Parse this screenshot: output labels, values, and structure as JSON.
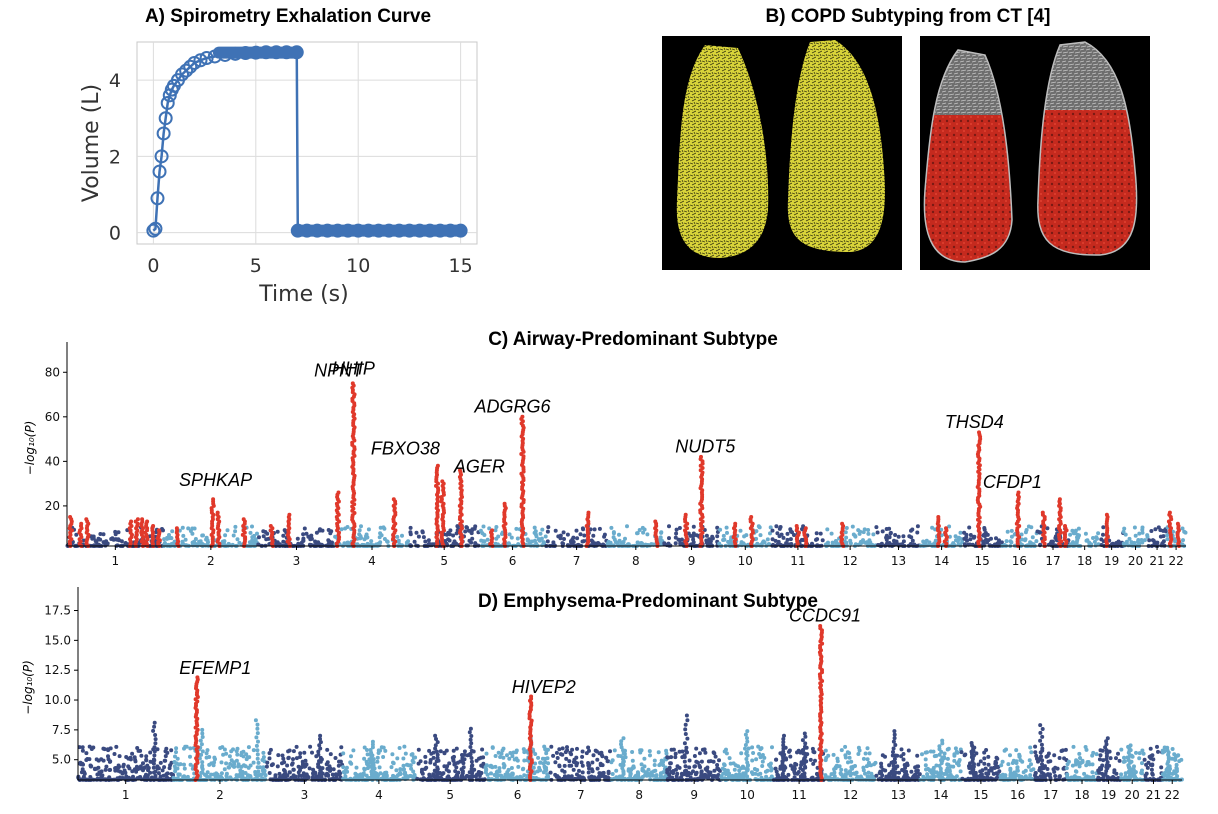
{
  "chart_data": [
    {
      "type": "line",
      "title": "A) Spirometry Exhalation Curve",
      "xlabel": "Time (s)",
      "ylabel": "Volume (L)",
      "xlim": [
        -0.8,
        15.8
      ],
      "ylim": [
        -0.3,
        5.0
      ],
      "xticks": [
        "0",
        "5",
        "10",
        "15"
      ],
      "yticks": [
        "0",
        "2",
        "4"
      ],
      "grid": true,
      "series": [
        {
          "marker": "open-circle",
          "x": [
            0,
            0.1,
            0.2,
            0.3,
            0.4,
            0.5,
            0.6,
            0.7,
            0.8,
            0.9,
            1.0,
            1.2,
            1.4,
            1.6,
            1.8,
            2.0,
            2.3,
            2.6,
            3.0,
            3.5,
            4.0,
            4.5,
            5.0,
            5.5,
            6.0,
            6.5,
            7.0
          ],
          "y": [
            0.05,
            0.1,
            0.9,
            1.6,
            2.0,
            2.6,
            3.0,
            3.4,
            3.6,
            3.75,
            3.85,
            4.0,
            4.15,
            4.25,
            4.35,
            4.45,
            4.52,
            4.58,
            4.62,
            4.66,
            4.69,
            4.71,
            4.72,
            4.73,
            4.73,
            4.73,
            4.73
          ]
        },
        {
          "marker": "filled-circle",
          "x": [
            7.05,
            7.5,
            8,
            8.5,
            9,
            9.5,
            10,
            10.5,
            11,
            11.5,
            12,
            12.5,
            13,
            13.5,
            14,
            14.5,
            15
          ],
          "y": [
            0.05,
            0.05,
            0.05,
            0.05,
            0.05,
            0.05,
            0.05,
            0.05,
            0.05,
            0.05,
            0.05,
            0.05,
            0.05,
            0.05,
            0.05,
            0.05,
            0.05
          ]
        }
      ],
      "colors": {
        "line": "#3f72b5"
      }
    },
    {
      "type": "image-panel",
      "title": "B) COPD Subtyping from CT [4]",
      "panels": [
        {
          "description_color": "#e8e233"
        },
        {
          "description_color": "#d42a1e"
        }
      ]
    },
    {
      "type": "scatter",
      "title": "C) Airway-Predominant Subtype",
      "ylabel": "−log₁₀(P)",
      "ylim": [
        2,
        90
      ],
      "yticks": [
        "20",
        "40",
        "60",
        "80"
      ],
      "chromosomes": [
        "1",
        "2",
        "3",
        "4",
        "5",
        "6",
        "7",
        "8",
        "9",
        "10",
        "11",
        "12",
        "13",
        "14",
        "15",
        "16",
        "17",
        "18",
        "19",
        "20",
        "21",
        "22"
      ],
      "colors": {
        "dark": "#3a4a80",
        "light": "#6aaccd",
        "hit": "#e0392b"
      },
      "peaks": [
        {
          "chrom": 1,
          "pos": 0.04,
          "y": 15
        },
        {
          "chrom": 1,
          "pos": 0.14,
          "y": 12
        },
        {
          "chrom": 1,
          "pos": 0.21,
          "y": 14
        },
        {
          "chrom": 1,
          "pos": 0.66,
          "y": 13
        },
        {
          "chrom": 1,
          "pos": 0.72,
          "y": 14
        },
        {
          "chrom": 1,
          "pos": 0.78,
          "y": 14
        },
        {
          "chrom": 1,
          "pos": 0.82,
          "y": 13
        },
        {
          "chrom": 1,
          "pos": 0.88,
          "y": 11
        },
        {
          "chrom": 1,
          "pos": 0.95,
          "y": 9
        },
        {
          "chrom": 2,
          "pos": 0.15,
          "y": 10
        },
        {
          "chrom": 2,
          "pos": 0.52,
          "y": 23
        },
        {
          "chrom": 2,
          "pos": 0.58,
          "y": 17
        },
        {
          "chrom": 2,
          "pos": 0.85,
          "y": 14
        },
        {
          "chrom": 3,
          "pos": 0.18,
          "y": 11
        },
        {
          "chrom": 3,
          "pos": 0.4,
          "y": 16
        },
        {
          "chrom": 4,
          "pos": 0.04,
          "y": 26
        },
        {
          "chrom": 4,
          "pos": 0.25,
          "y": 75
        },
        {
          "chrom": 4,
          "pos": 0.8,
          "y": 23
        },
        {
          "chrom": 5,
          "pos": 0.4,
          "y": 38
        },
        {
          "chrom": 5,
          "pos": 0.48,
          "y": 31
        },
        {
          "chrom": 5,
          "pos": 0.74,
          "y": 36
        },
        {
          "chrom": 6,
          "pos": 0.18,
          "y": 9
        },
        {
          "chrom": 6,
          "pos": 0.38,
          "y": 21
        },
        {
          "chrom": 6,
          "pos": 0.65,
          "y": 60
        },
        {
          "chrom": 7,
          "pos": 0.68,
          "y": 17
        },
        {
          "chrom": 8,
          "pos": 0.86,
          "y": 13
        },
        {
          "chrom": 9,
          "pos": 0.4,
          "y": 16
        },
        {
          "chrom": 9,
          "pos": 0.68,
          "y": 42
        },
        {
          "chrom": 10,
          "pos": 0.3,
          "y": 12
        },
        {
          "chrom": 10,
          "pos": 0.62,
          "y": 15
        },
        {
          "chrom": 11,
          "pos": 0.5,
          "y": 11
        },
        {
          "chrom": 11,
          "pos": 0.64,
          "y": 10
        },
        {
          "chrom": 12,
          "pos": 0.35,
          "y": 12
        },
        {
          "chrom": 14,
          "pos": 0.44,
          "y": 15
        },
        {
          "chrom": 14,
          "pos": 0.6,
          "y": 10
        },
        {
          "chrom": 15,
          "pos": 0.42,
          "y": 53
        },
        {
          "chrom": 16,
          "pos": 0.46,
          "y": 26
        },
        {
          "chrom": 17,
          "pos": 0.22,
          "y": 17
        },
        {
          "chrom": 17,
          "pos": 0.72,
          "y": 23
        },
        {
          "chrom": 17,
          "pos": 0.9,
          "y": 11
        },
        {
          "chrom": 19,
          "pos": 0.3,
          "y": 16
        },
        {
          "chrom": 22,
          "pos": 0.2,
          "y": 17
        },
        {
          "chrom": 22,
          "pos": 0.6,
          "y": 12
        }
      ],
      "labels": [
        {
          "text": "SPHKAP",
          "chrom": 2,
          "pos": 0.55,
          "y": 29
        },
        {
          "text": "NPNT",
          "chrom": 4,
          "pos": 0.05,
          "y": 78
        },
        {
          "text": "HHIP",
          "chrom": 4,
          "pos": 0.25,
          "y": 79
        },
        {
          "text": "FBXO38",
          "chrom": 4,
          "pos": 0.95,
          "y": 43
        },
        {
          "text": "AGER",
          "chrom": 6,
          "pos": 0.0,
          "y": 35
        },
        {
          "text": "ADGRG6",
          "chrom": 6,
          "pos": 0.5,
          "y": 62
        },
        {
          "text": "NUDT5",
          "chrom": 9,
          "pos": 0.75,
          "y": 44
        },
        {
          "text": "THSD4",
          "chrom": 15,
          "pos": 0.3,
          "y": 55
        },
        {
          "text": "CFDP1",
          "chrom": 16,
          "pos": 0.3,
          "y": 28
        }
      ]
    },
    {
      "type": "scatter",
      "title": "D) Emphysema-Predominant Subtype",
      "ylabel": "−log₁₀(P)",
      "ylim": [
        3.3,
        18.8
      ],
      "yticks": [
        "5.0",
        "7.5",
        "10.0",
        "12.5",
        "15.0",
        "17.5"
      ],
      "chromosomes": [
        "1",
        "2",
        "3",
        "4",
        "5",
        "6",
        "7",
        "8",
        "9",
        "10",
        "11",
        "12",
        "13",
        "14",
        "15",
        "16",
        "17",
        "18",
        "19",
        "20",
        "21",
        "22"
      ],
      "colors": {
        "dark": "#3a4a80",
        "light": "#6aaccd",
        "hit": "#e0392b"
      },
      "bumps": [
        {
          "chrom": 1,
          "pos": 0.8,
          "y": 8.1
        },
        {
          "chrom": 2,
          "pos": 0.3,
          "y": 7.5
        },
        {
          "chrom": 2,
          "pos": 0.9,
          "y": 8.3
        },
        {
          "chrom": 3,
          "pos": 0.7,
          "y": 7.0
        },
        {
          "chrom": 4,
          "pos": 0.4,
          "y": 6.5
        },
        {
          "chrom": 5,
          "pos": 0.3,
          "y": 7.0
        },
        {
          "chrom": 5,
          "pos": 0.8,
          "y": 7.6
        },
        {
          "chrom": 6,
          "pos": 0.7,
          "y": 6.8
        },
        {
          "chrom": 8,
          "pos": 0.2,
          "y": 6.8
        },
        {
          "chrom": 9,
          "pos": 0.35,
          "y": 8.7
        },
        {
          "chrom": 10,
          "pos": 0.5,
          "y": 7.4
        },
        {
          "chrom": 11,
          "pos": 0.2,
          "y": 7.0
        },
        {
          "chrom": 11,
          "pos": 0.6,
          "y": 7.2
        },
        {
          "chrom": 13,
          "pos": 0.4,
          "y": 7.4
        },
        {
          "chrom": 14,
          "pos": 0.5,
          "y": 6.6
        },
        {
          "chrom": 15,
          "pos": 0.3,
          "y": 6.4
        },
        {
          "chrom": 17,
          "pos": 0.2,
          "y": 7.9
        },
        {
          "chrom": 19,
          "pos": 0.4,
          "y": 6.8
        },
        {
          "chrom": 20,
          "pos": 0.4,
          "y": 6.2
        },
        {
          "chrom": 22,
          "pos": 0.3,
          "y": 6.0
        }
      ],
      "peaks": [
        {
          "chrom": 2,
          "pos": 0.25,
          "y": 11.9
        },
        {
          "chrom": 6,
          "pos": 0.7,
          "y": 10.3
        },
        {
          "chrom": 11,
          "pos": 0.92,
          "y": 16.2
        }
      ],
      "labels": [
        {
          "text": "EFEMP1",
          "chrom": 2,
          "pos": 0.45,
          "y": 12.2
        },
        {
          "text": "HIVEP2",
          "chrom": 6,
          "pos": 0.9,
          "y": 10.6
        },
        {
          "text": "CCDC91",
          "chrom": 12,
          "pos": 0.0,
          "y": 16.6
        }
      ]
    }
  ]
}
